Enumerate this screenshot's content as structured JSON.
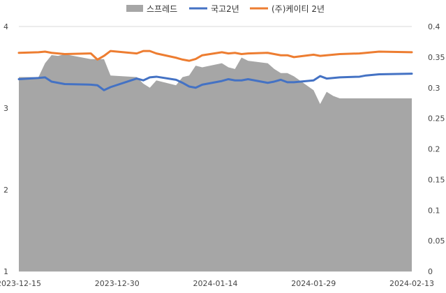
{
  "chart_data": {
    "type": "line",
    "title": "",
    "legend": {
      "placement": "top-center",
      "entries": [
        {
          "name": "스프레드",
          "kind": "area"
        },
        {
          "name": "국고2년",
          "kind": "line"
        },
        {
          "name": "(주)케이티 2년",
          "kind": "line"
        }
      ]
    },
    "colors": {
      "spread": "#a6a6a6",
      "gov2y": "#4472c4",
      "kt2y": "#ed7d31",
      "grid": "#d9d9d9"
    },
    "x": [
      "2023-12-15",
      "2023-12-18",
      "2023-12-19",
      "2023-12-20",
      "2023-12-21",
      "2023-12-22",
      "2023-12-26",
      "2023-12-27",
      "2023-12-28",
      "2023-12-29",
      "2024-01-02",
      "2024-01-03",
      "2024-01-04",
      "2024-01-05",
      "2024-01-08",
      "2024-01-09",
      "2024-01-10",
      "2024-01-11",
      "2024-01-12",
      "2024-01-15",
      "2024-01-16",
      "2024-01-17",
      "2024-01-18",
      "2024-01-19",
      "2024-01-22",
      "2024-01-23",
      "2024-01-24",
      "2024-01-25",
      "2024-01-26",
      "2024-01-29",
      "2024-01-30",
      "2024-01-31",
      "2024-02-01",
      "2024-02-02",
      "2024-02-05",
      "2024-02-06",
      "2024-02-07",
      "2024-02-08",
      "2024-02-13"
    ],
    "x_ticks": [
      "2023-12-15",
      "2023-12-30",
      "2024-01-14",
      "2024-01-29",
      "2024-02-13"
    ],
    "y_left": {
      "ticks": [
        "1",
        "2",
        "3",
        "4"
      ],
      "range": [
        1,
        4
      ]
    },
    "y_right": {
      "ticks": [
        "0",
        "0.05",
        "0.1",
        "0.15",
        "0.2",
        "0.25",
        "0.3",
        "0.35",
        "0.4"
      ],
      "range": [
        0,
        0.4
      ]
    },
    "series": [
      {
        "name": "스프레드",
        "axis": "left",
        "kind": "area",
        "values": [
          3.38,
          3.38,
          3.55,
          3.65,
          3.64,
          3.66,
          3.6,
          3.6,
          3.6,
          3.4,
          3.38,
          3.3,
          3.25,
          3.34,
          3.28,
          3.38,
          3.4,
          3.52,
          3.5,
          3.55,
          3.5,
          3.48,
          3.62,
          3.58,
          3.55,
          3.48,
          3.43,
          3.43,
          3.39,
          3.22,
          3.05,
          3.2,
          3.15,
          3.12,
          3.12,
          3.12,
          3.12,
          3.12,
          3.12
        ]
      },
      {
        "name": "국고2년",
        "axis": "right",
        "kind": "line",
        "values": [
          0.314,
          0.316,
          0.317,
          0.31,
          0.308,
          0.306,
          0.305,
          0.304,
          0.296,
          0.301,
          0.315,
          0.312,
          0.317,
          0.318,
          0.313,
          0.308,
          0.302,
          0.3,
          0.305,
          0.311,
          0.314,
          0.312,
          0.312,
          0.314,
          0.308,
          0.31,
          0.313,
          0.309,
          0.309,
          0.312,
          0.319,
          0.315,
          0.316,
          0.317,
          0.318,
          0.32,
          0.321,
          0.322,
          0.323
        ]
      },
      {
        "name": "(주)케이티 2년",
        "axis": "right",
        "kind": "line",
        "values": [
          0.357,
          0.358,
          0.359,
          0.357,
          0.356,
          0.355,
          0.356,
          0.346,
          0.352,
          0.36,
          0.356,
          0.36,
          0.36,
          0.356,
          0.349,
          0.346,
          0.344,
          0.347,
          0.353,
          0.358,
          0.356,
          0.357,
          0.355,
          0.356,
          0.357,
          0.355,
          0.353,
          0.353,
          0.35,
          0.354,
          0.352,
          0.353,
          0.354,
          0.355,
          0.356,
          0.357,
          0.358,
          0.359,
          0.358
        ]
      }
    ]
  }
}
